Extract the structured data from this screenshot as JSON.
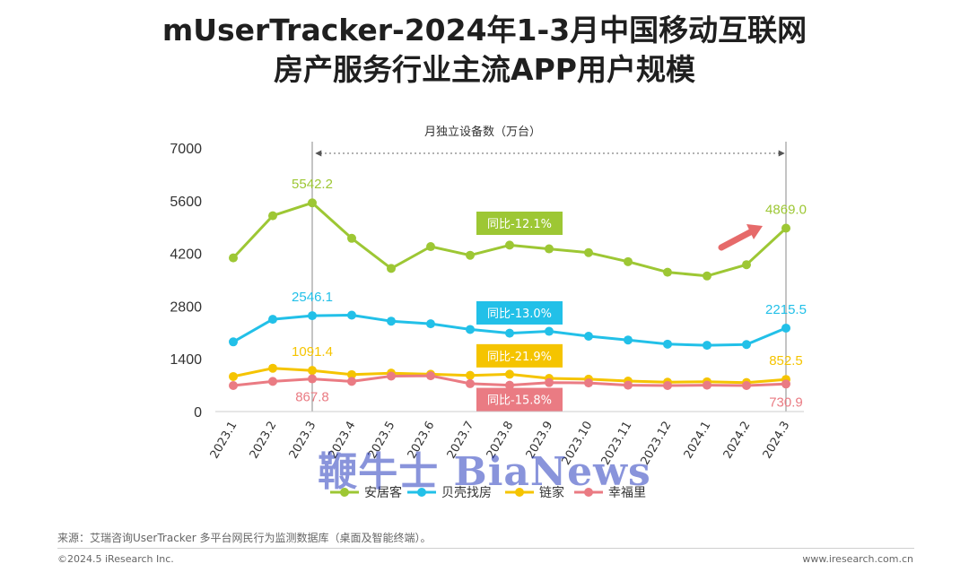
{
  "title_line1": "mUserTracker-2024年1-3月中国移动互联网",
  "title_line2": "房产服务行业主流APP用户规模",
  "source": "来源：艾瑞咨询UserTracker 多平台网民行为监测数据库（桌面及智能终端）。",
  "copyright": "©2024.5 iResearch Inc.",
  "website": "www.iresearch.com.cn",
  "watermark": "鞭牛士 BiaNews",
  "chart_data": {
    "type": "line",
    "ylabel": "月独立设备数（万台）",
    "ylim": [
      0,
      7000
    ],
    "yticks": [
      0,
      1400,
      2800,
      4200,
      5600,
      7000
    ],
    "grid": false,
    "legend": "bottom",
    "categories": [
      "2023.1",
      "2023.2",
      "2023.3",
      "2023.4",
      "2023.5",
      "2023.6",
      "2023.7",
      "2023.8",
      "2023.9",
      "2023.10",
      "2023.11",
      "2023.12",
      "2024.1",
      "2024.2",
      "2024.3"
    ],
    "series": [
      {
        "name": "安居客",
        "color": "#9DC734",
        "values": [
          4080,
          5200,
          5542.2,
          4600,
          3800,
          4380,
          4150,
          4420,
          4320,
          4220,
          3980,
          3700,
          3600,
          3900,
          4869.0
        ],
        "labels": [
          {
            "index": 2,
            "text": "5542.2"
          },
          {
            "index": 14,
            "text": "4869.0"
          }
        ]
      },
      {
        "name": "贝壳找房",
        "color": "#22C0E8",
        "values": [
          1850,
          2450,
          2546.1,
          2560,
          2400,
          2330,
          2180,
          2080,
          2130,
          2000,
          1900,
          1790,
          1760,
          1780,
          2215.5
        ],
        "labels": [
          {
            "index": 2,
            "text": "2546.1"
          },
          {
            "index": 14,
            "text": "2215.5"
          }
        ]
      },
      {
        "name": "链家",
        "color": "#F5C400",
        "values": [
          930,
          1150,
          1091.4,
          980,
          1020,
          990,
          960,
          990,
          880,
          860,
          810,
          780,
          790,
          770,
          852.5
        ],
        "labels": [
          {
            "index": 2,
            "text": "1091.4"
          },
          {
            "index": 14,
            "text": "852.5"
          }
        ]
      },
      {
        "name": "幸福里",
        "color": "#EA7B83",
        "values": [
          690,
          800,
          867.8,
          800,
          940,
          950,
          740,
          700,
          770,
          760,
          700,
          690,
          700,
          690,
          730.9
        ],
        "labels": [
          {
            "index": 2,
            "text": "867.8",
            "below": true
          },
          {
            "index": 14,
            "text": "730.9",
            "below": true
          }
        ]
      }
    ],
    "annotations": [
      {
        "text": "同比-12.1%",
        "color": "#9DC734",
        "x_index": 8,
        "y": 5000
      },
      {
        "text": "同比-13.0%",
        "color": "#22C0E8",
        "x_index": 8,
        "y": 2620
      },
      {
        "text": "同比-21.9%",
        "color": "#F5C400",
        "x_index": 8,
        "y": 1480
      },
      {
        "text": "同比-15.8%",
        "color": "#EA7B83",
        "x_index": 8,
        "y": 320
      }
    ]
  }
}
